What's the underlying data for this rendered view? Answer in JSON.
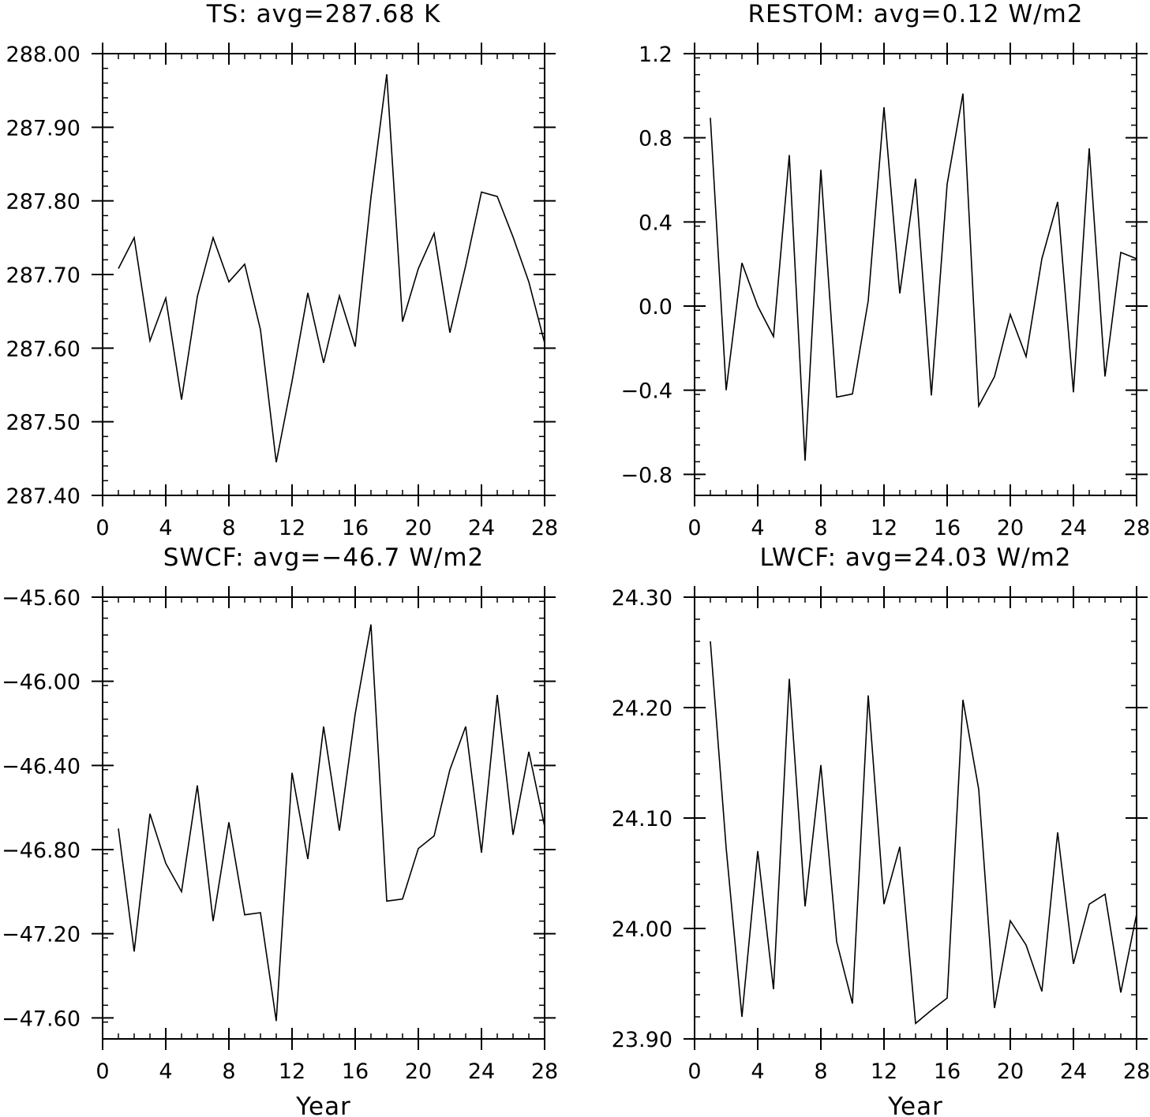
{
  "chart_data": [
    {
      "type": "line",
      "title": "TS: avg=287.68 K",
      "xlabel": "",
      "ylabel": "",
      "xlim": [
        0,
        28
      ],
      "ylim": [
        287.4,
        288.0
      ],
      "xticks": [
        0,
        4,
        8,
        12,
        16,
        20,
        24,
        28
      ],
      "xtick_labels": [
        "0",
        "4",
        "8",
        "12",
        "16",
        "20",
        "24",
        "28"
      ],
      "yticks": [
        287.4,
        287.5,
        287.6,
        287.7,
        287.8,
        287.9,
        288.0
      ],
      "ytick_labels": [
        "287.40",
        "287.50",
        "287.60",
        "287.70",
        "287.80",
        "287.90",
        "288.00"
      ],
      "series": [
        {
          "x": [
            1,
            2,
            3,
            4,
            5,
            6,
            7,
            8,
            9,
            10,
            11,
            12,
            13,
            14,
            15,
            16,
            17,
            18,
            19,
            20,
            21,
            22,
            23,
            24,
            25,
            26,
            27,
            28
          ],
          "values": [
            287.708,
            287.75,
            287.61,
            287.668,
            287.53,
            287.67,
            287.75,
            287.69,
            287.714,
            287.625,
            287.445,
            287.555,
            287.675,
            287.58,
            287.671,
            287.602,
            287.805,
            287.972,
            287.636,
            287.708,
            287.756,
            287.621,
            287.712,
            287.812,
            287.806,
            287.751,
            287.69,
            287.607
          ]
        }
      ]
    },
    {
      "type": "line",
      "title": "RESTOM: avg=0.12 W/m2",
      "xlabel": "",
      "ylabel": "",
      "xlim": [
        0,
        28
      ],
      "ylim": [
        -0.9,
        1.2
      ],
      "xticks": [
        0,
        4,
        8,
        12,
        16,
        20,
        24,
        28
      ],
      "xtick_labels": [
        "0",
        "4",
        "8",
        "12",
        "16",
        "20",
        "24",
        "28"
      ],
      "yticks": [
        -0.8,
        -0.4,
        0.0,
        0.4,
        0.8,
        1.2
      ],
      "ytick_labels": [
        "−0.8",
        "−0.4",
        "0.0",
        "0.4",
        "0.8",
        "1.2"
      ],
      "series": [
        {
          "x": [
            1,
            2,
            3,
            4,
            5,
            6,
            7,
            8,
            9,
            10,
            11,
            12,
            13,
            14,
            15,
            16,
            17,
            18,
            19,
            20,
            21,
            22,
            23,
            24,
            25,
            26,
            27,
            28
          ],
          "values": [
            0.895,
            -0.4,
            0.205,
            0.0,
            -0.145,
            0.718,
            -0.735,
            0.648,
            -0.433,
            -0.418,
            0.025,
            0.945,
            0.06,
            0.605,
            -0.425,
            0.58,
            1.01,
            -0.475,
            -0.335,
            -0.04,
            -0.24,
            0.225,
            0.495,
            -0.41,
            0.75,
            -0.335,
            0.255,
            0.225
          ]
        }
      ]
    },
    {
      "type": "line",
      "title": "SWCF: avg=−46.7 W/m2",
      "xlabel": "Year",
      "ylabel": "",
      "xlim": [
        0,
        28
      ],
      "ylim": [
        -47.7,
        -45.6
      ],
      "xticks": [
        0,
        4,
        8,
        12,
        16,
        20,
        24,
        28
      ],
      "xtick_labels": [
        "0",
        "4",
        "8",
        "12",
        "16",
        "20",
        "24",
        "28"
      ],
      "yticks": [
        -47.6,
        -47.2,
        -46.8,
        -46.4,
        -46.0,
        -45.6
      ],
      "ytick_labels": [
        "−47.60",
        "−47.20",
        "−46.80",
        "−46.40",
        "−46.00",
        "−45.60"
      ],
      "series": [
        {
          "x": [
            1,
            2,
            3,
            4,
            5,
            6,
            7,
            8,
            9,
            10,
            11,
            12,
            13,
            14,
            15,
            16,
            17,
            18,
            19,
            20,
            21,
            22,
            23,
            24,
            25,
            26,
            27,
            28
          ],
          "values": [
            -46.7,
            -47.285,
            -46.63,
            -46.865,
            -47.0,
            -46.495,
            -47.14,
            -46.67,
            -47.11,
            -47.1,
            -47.615,
            -46.435,
            -46.845,
            -46.215,
            -46.71,
            -46.155,
            -45.73,
            -47.045,
            -47.035,
            -46.795,
            -46.735,
            -46.42,
            -46.215,
            -46.815,
            -46.065,
            -46.73,
            -46.335,
            -46.69
          ]
        }
      ]
    },
    {
      "type": "line",
      "title": "LWCF: avg=24.03 W/m2",
      "xlabel": "Year",
      "ylabel": "",
      "xlim": [
        0,
        28
      ],
      "ylim": [
        23.9,
        24.3
      ],
      "xticks": [
        0,
        4,
        8,
        12,
        16,
        20,
        24,
        28
      ],
      "xtick_labels": [
        "0",
        "4",
        "8",
        "12",
        "16",
        "20",
        "24",
        "28"
      ],
      "yticks": [
        23.9,
        24.0,
        24.1,
        24.2,
        24.3
      ],
      "ytick_labels": [
        "23.90",
        "24.00",
        "24.10",
        "24.20",
        "24.30"
      ],
      "series": [
        {
          "x": [
            1,
            2,
            3,
            4,
            5,
            6,
            7,
            8,
            9,
            10,
            11,
            12,
            13,
            14,
            15,
            16,
            17,
            18,
            19,
            20,
            21,
            22,
            23,
            24,
            25,
            26,
            27,
            28
          ],
          "values": [
            24.26,
            24.073,
            23.92,
            24.07,
            23.945,
            24.226,
            24.02,
            24.148,
            23.988,
            23.932,
            24.211,
            24.022,
            24.074,
            23.914,
            23.926,
            23.937,
            24.207,
            24.126,
            23.928,
            24.007,
            23.985,
            23.943,
            24.087,
            23.968,
            24.022,
            24.031,
            23.942,
            24.013
          ]
        }
      ]
    }
  ]
}
